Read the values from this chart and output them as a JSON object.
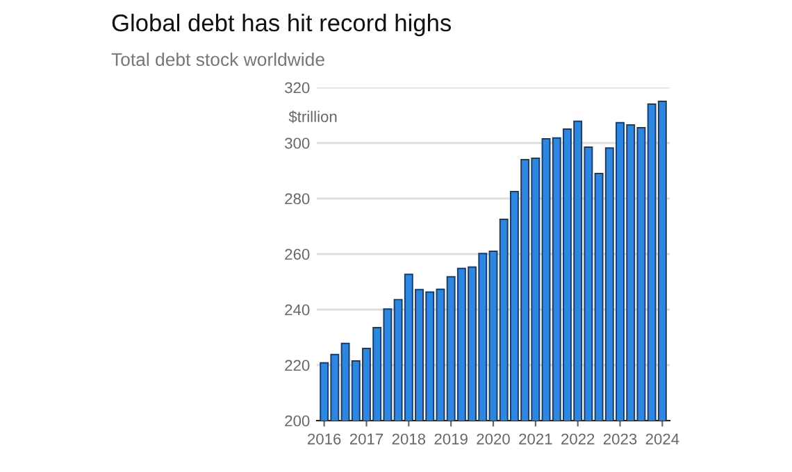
{
  "chart_data": {
    "type": "bar",
    "title": "Global debt has hit record highs",
    "subtitle": "Total debt stock worldwide",
    "ylabel": "$trillion",
    "categories": [
      "2016",
      null,
      null,
      null,
      "2017",
      null,
      null,
      null,
      "2018",
      null,
      null,
      null,
      "2019",
      null,
      null,
      null,
      "2020",
      null,
      null,
      null,
      "2021",
      null,
      null,
      null,
      "2022",
      null,
      null,
      null,
      "2023",
      null,
      null,
      null,
      "2024"
    ],
    "values": [
      220.8,
      223.8,
      227.8,
      221.5,
      226,
      233.5,
      240.2,
      243.6,
      252.7,
      247.2,
      246.3,
      247.3,
      251.8,
      254.8,
      255.3,
      260.2,
      261,
      272.5,
      282.5,
      294,
      294.5,
      301.5,
      301.8,
      305,
      307.8,
      298.5,
      289,
      298.2,
      307.3,
      306.5,
      305.5,
      314,
      315
    ],
    "color": "#2f86e0",
    "ylim": [
      200,
      320
    ],
    "yticks": [
      200,
      220,
      240,
      260,
      280,
      300,
      320
    ],
    "grid": "y"
  }
}
